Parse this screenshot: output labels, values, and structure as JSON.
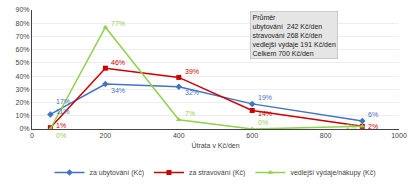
{
  "chart_data": {
    "type": "line",
    "x": [
      50,
      200,
      400,
      600,
      900
    ],
    "series": [
      {
        "name": "za ubytování (Kč)",
        "color": "#4472C4",
        "marker": "diamond",
        "values": [
          11,
          34,
          32,
          19,
          6
        ],
        "value_labels": [
          "11%",
          "34%",
          "32%",
          "19%",
          "6%"
        ]
      },
      {
        "name": "za stravování (Kč)",
        "color": "#CC0000",
        "marker": "square",
        "values": [
          1,
          46,
          39,
          14,
          2
        ],
        "value_labels": [
          "1%",
          "46%",
          "39%",
          "14%",
          "2%"
        ]
      },
      {
        "name": "vedlejší výdaje/nákupy (Kč)",
        "color": "#92D050",
        "marker": "triangle",
        "values": [
          0,
          77,
          7,
          0,
          2
        ],
        "value_labels": [
          "0%",
          "77%",
          "7%",
          "0%",
          "2%"
        ]
      }
    ],
    "xlabel": "Útrata v Kč/den",
    "xlim": [
      0,
      1000
    ],
    "xticks": [
      0,
      200,
      400,
      600,
      800,
      1000
    ],
    "ylim": [
      0,
      90
    ],
    "yticks": [
      {
        "value": 0,
        "label": "0%"
      },
      {
        "value": 10,
        "label": "10%"
      },
      {
        "value": 20,
        "label": "20%"
      },
      {
        "value": 30,
        "label": "30%"
      },
      {
        "value": 40,
        "label": "40%"
      },
      {
        "value": 50,
        "label": "50%"
      },
      {
        "value": 60,
        "label": "60%"
      },
      {
        "value": 70,
        "label": "70%"
      },
      {
        "value": 80,
        "label": "80%"
      },
      {
        "value": 90,
        "label": "90%"
      }
    ],
    "grid": "y",
    "legend": "bottom",
    "data_labels": true,
    "annotations": [
      "17%",
      "Průměr\nubytování  242 Kč/den\nstravování 268 Kč/den\nvedlejší výdaje 191 Kč/den\nCelkem 700 Kč/den"
    ]
  }
}
